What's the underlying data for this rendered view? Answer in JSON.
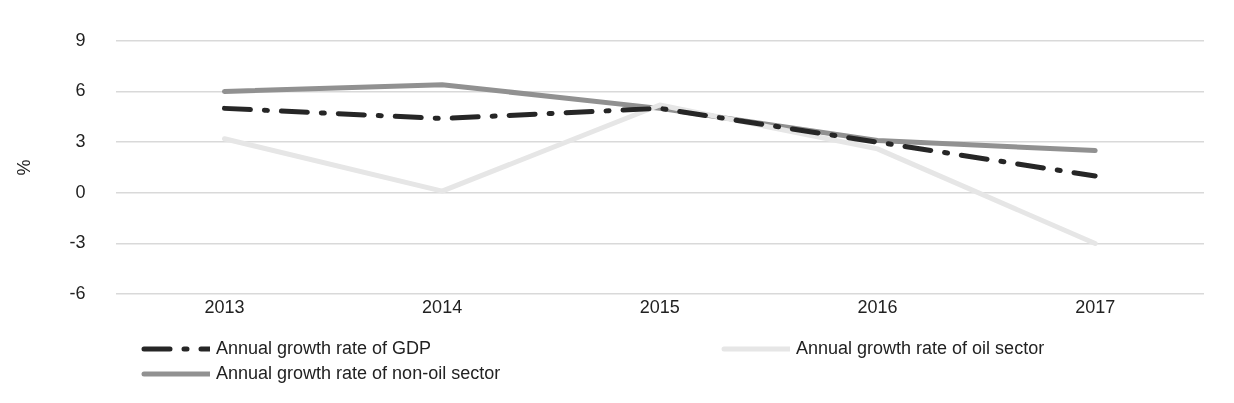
{
  "chart_data": {
    "type": "line",
    "ylabel": "%",
    "categories": [
      "2013",
      "2014",
      "2015",
      "2016",
      "2017"
    ],
    "series": [
      {
        "name": "Annual growth rate of GDP",
        "color": "#262626",
        "values": [
          5.0,
          4.4,
          5.0,
          3.0,
          1.0
        ],
        "line_style": "dashed"
      },
      {
        "name": "Annual growth rate of oil sector",
        "color": "#e6e6e6",
        "values": [
          3.2,
          0.1,
          5.2,
          2.6,
          -3.0
        ]
      },
      {
        "name": "Annual growth rate of non-oil sector",
        "color": "#919191",
        "values": [
          6.0,
          6.4,
          5.0,
          3.1,
          2.5
        ]
      }
    ],
    "ylim": [
      -6,
      9
    ],
    "yticks": [
      -6,
      -3,
      0,
      3,
      6,
      9
    ],
    "grid": "y",
    "legend": "bottom",
    "marker": "none"
  }
}
